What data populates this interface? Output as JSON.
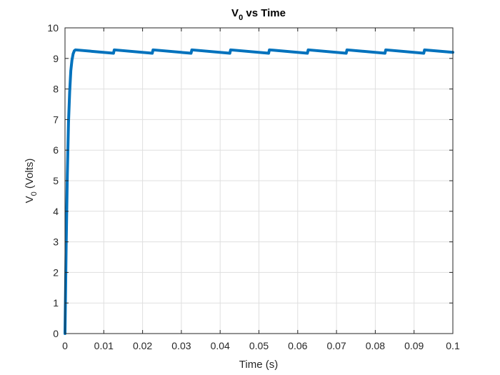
{
  "chart_data": {
    "type": "line",
    "title": {
      "main": "V",
      "subscript": "0",
      "rest": " vs Time"
    },
    "xlabel": "Time (s)",
    "ylabel": {
      "main": "V",
      "subscript": "0",
      "rest": " (Volts)"
    },
    "xlim": [
      0,
      0.1
    ],
    "ylim": [
      0,
      10
    ],
    "x_ticks": [
      0,
      0.01,
      0.02,
      0.03,
      0.04,
      0.05,
      0.06,
      0.07,
      0.08,
      0.09,
      0.1
    ],
    "x_tick_labels": [
      "0",
      "0.01",
      "0.02",
      "0.03",
      "0.04",
      "0.05",
      "0.06",
      "0.07",
      "0.08",
      "0.09",
      "0.1"
    ],
    "y_ticks": [
      0,
      1,
      2,
      3,
      4,
      5,
      6,
      7,
      8,
      9,
      10
    ],
    "y_tick_labels": [
      "0",
      "1",
      "2",
      "3",
      "4",
      "5",
      "6",
      "7",
      "8",
      "9",
      "10"
    ],
    "grid": true,
    "colors": {
      "series": "#0072BD",
      "grid": "#dfdfdf",
      "axis": "#262626"
    },
    "series": [
      {
        "x": [
          0,
          0.0003,
          0.0006,
          0.0009,
          0.0012,
          0.0015,
          0.0018,
          0.0021,
          0.0024,
          0.0027,
          0.0125,
          0.0127,
          0.0225,
          0.0227,
          0.0325,
          0.0327,
          0.0425,
          0.0427,
          0.0525,
          0.0527,
          0.0625,
          0.0627,
          0.0725,
          0.0727,
          0.0825,
          0.0827,
          0.0925,
          0.0927,
          0.1
        ],
        "y": [
          0,
          2.9,
          5.2,
          6.9,
          7.9,
          8.6,
          8.95,
          9.15,
          9.25,
          9.28,
          9.17,
          9.28,
          9.17,
          9.28,
          9.17,
          9.28,
          9.17,
          9.28,
          9.17,
          9.28,
          9.17,
          9.28,
          9.17,
          9.28,
          9.17,
          9.28,
          9.17,
          9.28,
          9.2
        ]
      }
    ]
  }
}
